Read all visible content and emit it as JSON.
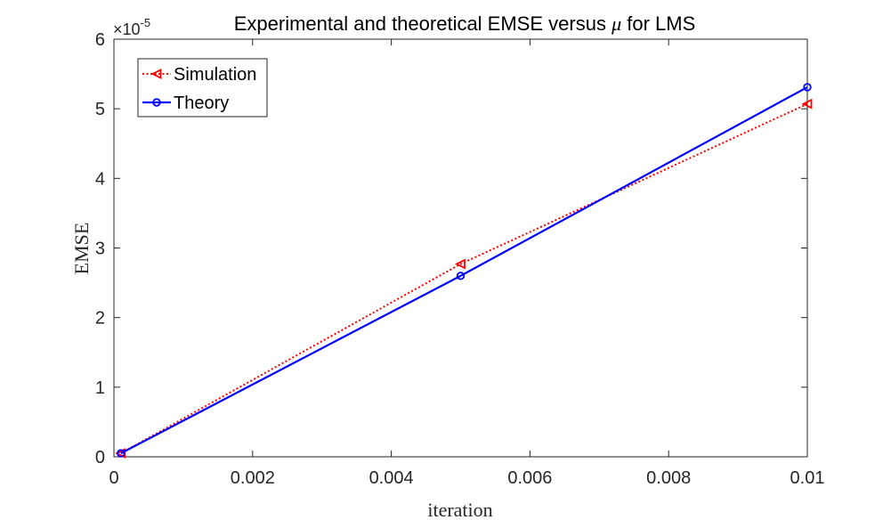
{
  "chart_data": {
    "type": "line",
    "title_prefix": "Experimental and theoretical EMSE versus ",
    "title_symbol": "μ",
    "title_suffix": " for LMS",
    "xlabel": "iteration",
    "ylabel": "EMSE",
    "y_exponent_base": "×10",
    "y_exponent_power": "-5",
    "xlim": [
      0,
      0.01
    ],
    "ylim": [
      0,
      6
    ],
    "x_ticks": [
      0,
      0.002,
      0.004,
      0.006,
      0.008,
      0.01
    ],
    "x_tick_labels": [
      "0",
      "0.002",
      "0.004",
      "0.006",
      "0.008",
      "0.01"
    ],
    "y_ticks": [
      0,
      1,
      2,
      3,
      4,
      5,
      6
    ],
    "y_tick_labels": [
      "0",
      "1",
      "2",
      "3",
      "4",
      "5",
      "6"
    ],
    "grid": false,
    "legend_position": "top-left",
    "series": [
      {
        "name": "Simulation",
        "color": "#ff0000",
        "line_style": "dotted",
        "marker": "triangle-left",
        "x": [
          0.0001,
          0.005,
          0.01
        ],
        "y": [
          0.05,
          2.77,
          5.07
        ]
      },
      {
        "name": "Theory",
        "color": "#0000ff",
        "line_style": "solid",
        "marker": "circle",
        "x": [
          0.0001,
          0.005,
          0.01
        ],
        "y": [
          0.05,
          2.6,
          5.31
        ]
      }
    ]
  }
}
